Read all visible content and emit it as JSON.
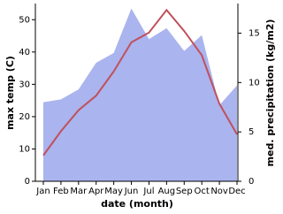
{
  "chart_data": {
    "type": "line-area",
    "xlabel": "date (month)",
    "ylabel": "max temp (C)",
    "y2label": "med. precipitation (kg/m2)",
    "categories": [
      "Jan",
      "Feb",
      "Mar",
      "Apr",
      "May",
      "Jun",
      "Jul",
      "Aug",
      "Sep",
      "Oct",
      "Nov",
      "Dec"
    ],
    "series": [
      {
        "type": "area",
        "axis": "y2",
        "color": "#aab4ee",
        "values": [
          8,
          8.3,
          9.3,
          12,
          13,
          17.5,
          14.4,
          15.5,
          13.2,
          14.8,
          7.7,
          9.7
        ]
      },
      {
        "type": "line",
        "color": "#c0505c",
        "values": [
          8,
          15.5,
          22,
          26.5,
          34,
          43,
          46,
          53,
          46.5,
          39,
          24,
          14.5
        ]
      }
    ],
    "ylim": [
      0,
      55
    ],
    "yticks": [
      0,
      10,
      20,
      30,
      40,
      50
    ],
    "y2lim": [
      0,
      18
    ],
    "y2ticks": [
      0,
      5,
      10,
      15
    ]
  }
}
